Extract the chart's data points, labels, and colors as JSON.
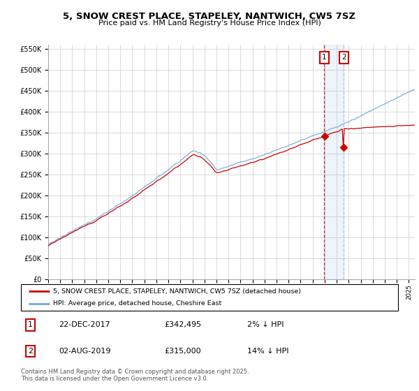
{
  "title_line1": "5, SNOW CREST PLACE, STAPELEY, NANTWICH, CW5 7SZ",
  "title_line2": "Price paid vs. HM Land Registry's House Price Index (HPI)",
  "legend_label1": "5, SNOW CREST PLACE, STAPELEY, NANTWICH, CW5 7SZ (detached house)",
  "legend_label2": "HPI: Average price, detached house, Cheshire East",
  "annotation1_date": "22-DEC-2017",
  "annotation1_price": "£342,495",
  "annotation1_hpi": "2% ↓ HPI",
  "annotation2_date": "02-AUG-2019",
  "annotation2_price": "£315,000",
  "annotation2_hpi": "14% ↓ HPI",
  "footer": "Contains HM Land Registry data © Crown copyright and database right 2025.\nThis data is licensed under the Open Government Licence v3.0.",
  "color_hpi": "#6fa8dc",
  "color_price": "#cc0000",
  "color_vline1": "#cc0000",
  "color_vline2": "#9ab8d4",
  "color_annotation_box": "#cc0000",
  "background_color": "#ffffff",
  "grid_color": "#cccccc",
  "ylim_min": 0,
  "ylim_max": 560000,
  "year_start": 1995,
  "year_end": 2025,
  "purchase1_year": 2017.97,
  "purchase2_year": 2019.58,
  "purchase1_price": 342495,
  "purchase2_price": 315000
}
